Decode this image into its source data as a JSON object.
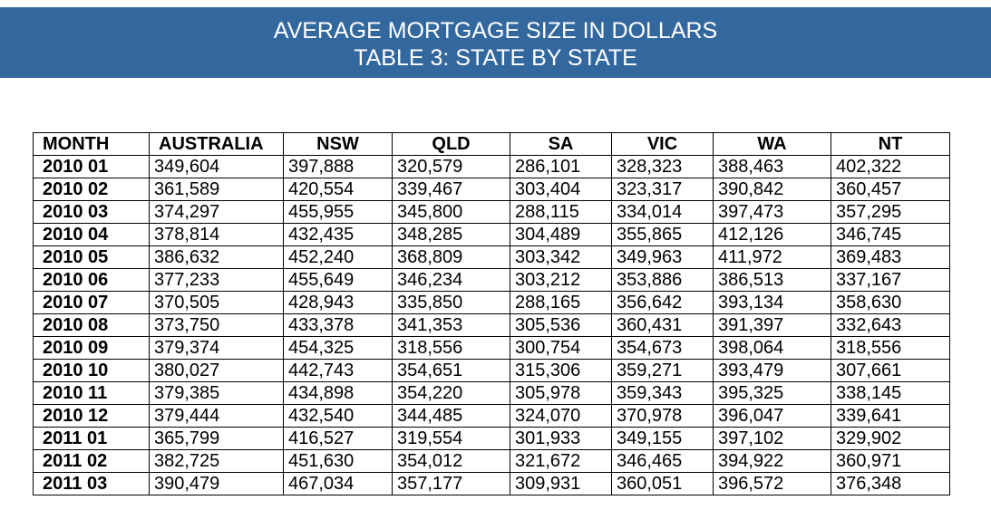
{
  "header": {
    "title": "AVERAGE MORTGAGE SIZE IN DOLLARS",
    "subtitle": "TABLE 3: STATE BY STATE",
    "background_color": "#33689f"
  },
  "table": {
    "columns": [
      "MONTH",
      "AUSTRALIA",
      "NSW",
      "QLD",
      "SA",
      "VIC",
      "WA",
      "NT"
    ],
    "rows": [
      [
        "2010 01",
        "349,604",
        "397,888",
        "320,579",
        "286,101",
        "328,323",
        "388,463",
        "402,322"
      ],
      [
        "2010 02",
        "361,589",
        "420,554",
        "339,467",
        "303,404",
        "323,317",
        "390,842",
        "360,457"
      ],
      [
        "2010 03",
        "374,297",
        "455,955",
        "345,800",
        "288,115",
        "334,014",
        "397,473",
        "357,295"
      ],
      [
        "2010 04",
        "378,814",
        "432,435",
        "348,285",
        "304,489",
        "355,865",
        "412,126",
        "346,745"
      ],
      [
        "2010 05",
        "386,632",
        "452,240",
        "368,809",
        "303,342",
        "349,963",
        "411,972",
        "369,483"
      ],
      [
        "2010 06",
        "377,233",
        "455,649",
        "346,234",
        "303,212",
        "353,886",
        "386,513",
        "337,167"
      ],
      [
        "2010 07",
        "370,505",
        "428,943",
        "335,850",
        "288,165",
        "356,642",
        "393,134",
        "358,630"
      ],
      [
        "2010 08",
        "373,750",
        "433,378",
        "341,353",
        "305,536",
        "360,431",
        "391,397",
        "332,643"
      ],
      [
        "2010 09",
        "379,374",
        "454,325",
        "318,556",
        "300,754",
        "354,673",
        "398,064",
        "318,556"
      ],
      [
        "2010 10",
        "380,027",
        "442,743",
        "354,651",
        "315,306",
        "359,271",
        "393,479",
        "307,661"
      ],
      [
        "2010 11",
        "379,385",
        "434,898",
        "354,220",
        "305,978",
        "359,343",
        "395,325",
        "338,145"
      ],
      [
        "2010 12",
        "379,444",
        "432,540",
        "344,485",
        "324,070",
        "370,978",
        "396,047",
        "339,641"
      ],
      [
        "2011 01",
        "365,799",
        "416,527",
        "319,554",
        "301,933",
        "349,155",
        "397,102",
        "329,902"
      ],
      [
        "2011 02",
        "382,725",
        "451,630",
        "354,012",
        "321,672",
        "346,465",
        "394,922",
        "360,971"
      ],
      [
        "2011 03",
        "390,479",
        "467,034",
        "357,177",
        "309,931",
        "360,051",
        "396,572",
        "376,348"
      ]
    ]
  }
}
